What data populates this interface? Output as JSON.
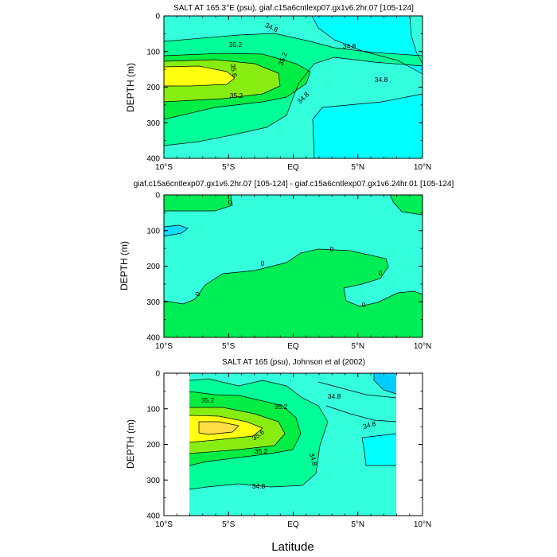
{
  "chart_data": [
    {
      "type": "heatmap",
      "title": "SALT AT 165.3°E (psu), giaf.c15a6cntlexp07.gx1v6.2hr.07 [105-124]",
      "ylabel": "DEPTH (m)",
      "xlabel": "",
      "xlim": [
        -10,
        10
      ],
      "ylim": [
        400,
        0
      ],
      "x_ticks": [
        "10°S",
        "5°S",
        "EQ",
        "5°N",
        "10°N"
      ],
      "y_ticks": [
        "0",
        "100",
        "200",
        "300",
        "400"
      ],
      "contour_labels": [
        "34.8",
        "35.2",
        "35.6",
        "35.2",
        "34.8",
        "35.2",
        "34.8",
        "34.8"
      ],
      "colors": {
        "lowest": "#00ffff",
        "low": "#33ffdd",
        "mid": "#00ff99",
        "midhigh": "#00ee44",
        "high": "#88ee11",
        "highest": "#ffff11"
      }
    },
    {
      "type": "heatmap",
      "title": "giaf.c15a6cntlexp07.gx1v6.2hr.07 [105-124] - giaf.c15a6cntlexp07.gx1v6.24hr.01 [105-124]",
      "ylabel": "DEPTH (m)",
      "xlabel": "",
      "xlim": [
        -10,
        10
      ],
      "ylim": [
        400,
        0
      ],
      "x_ticks": [
        "10°S",
        "5°S",
        "EQ",
        "5°N",
        "10°N"
      ],
      "y_ticks": [
        "0",
        "100",
        "200",
        "300",
        "400"
      ],
      "contour_labels": [
        "0",
        "0",
        "0",
        "0",
        "0",
        "0"
      ],
      "colors": {
        "negative": "#33ffdd",
        "positive": "#00ee55",
        "weak_negative": "#11ddff"
      }
    },
    {
      "type": "heatmap",
      "title": "SALT AT 165 (psu), Johnson et al (2002)",
      "ylabel": "DEPTH (m)",
      "xlabel": "Latitude",
      "xlim": [
        -10,
        10
      ],
      "ylim": [
        400,
        0
      ],
      "x_ticks": [
        "10°S",
        "5°S",
        "EQ",
        "5°N",
        "10°N"
      ],
      "y_ticks": [
        "0",
        "100",
        "200",
        "300",
        "400"
      ],
      "contour_labels": [
        "35.2",
        "35.2",
        "34.8",
        "34.8",
        "35.6",
        "35.2",
        "34.8",
        "34.8"
      ],
      "colors": {
        "lowest": "#00ccff",
        "low": "#33ffdd",
        "mid": "#00ff99",
        "midhigh": "#00ee44",
        "high": "#88ee11",
        "highest": "#ffdd44"
      }
    }
  ]
}
